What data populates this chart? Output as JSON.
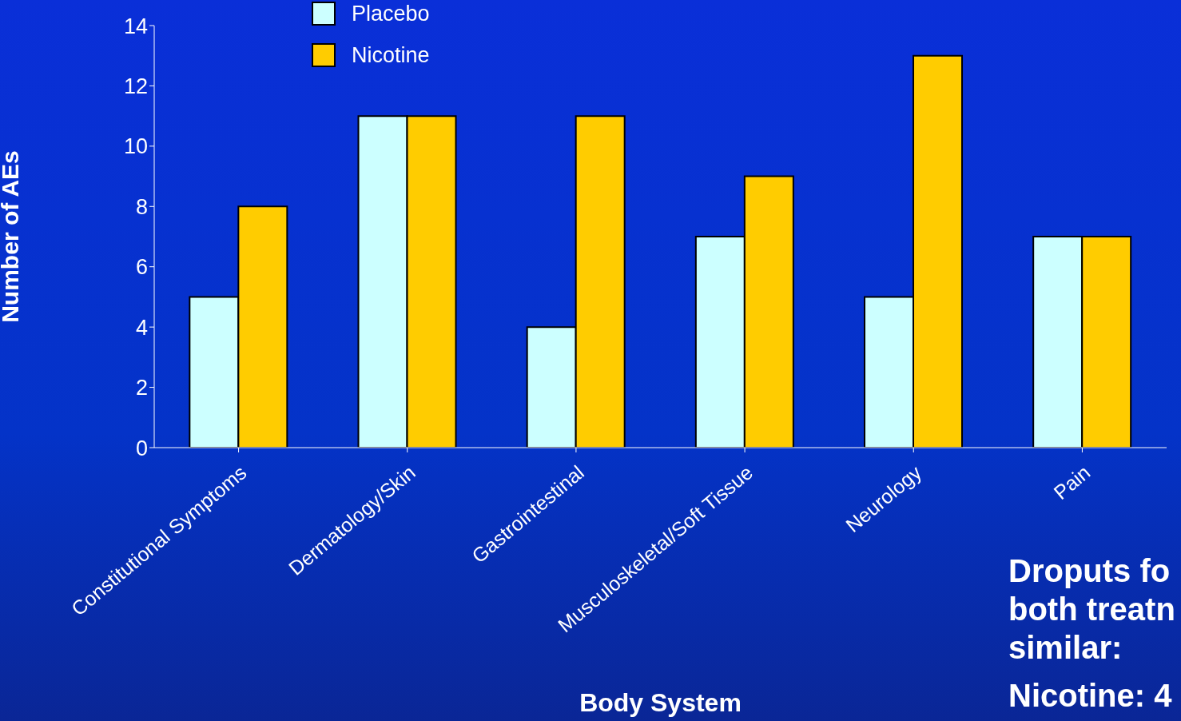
{
  "chart_data": {
    "type": "bar",
    "xlabel": "Body System",
    "ylabel": "Number of AEs",
    "categories": [
      "Constitutional Symptoms",
      "Dermatology/Skin",
      "Gastrointestinal",
      "Musculoskeletal/Soft Tissue",
      "Neurology",
      "Pain"
    ],
    "series": [
      {
        "name": "Placebo",
        "color": "#ccffff",
        "values": [
          5,
          11,
          4,
          7,
          5,
          7
        ]
      },
      {
        "name": "Nicotine",
        "color": "#ffcc00",
        "values": [
          8,
          11,
          11,
          9,
          13,
          7
        ]
      }
    ],
    "ylim": [
      0,
      14
    ],
    "yticks": [
      0,
      2,
      4,
      6,
      8,
      10,
      12,
      14
    ],
    "legend": "top left",
    "annotations": [
      "Droputs fo",
      "both treatn",
      "similar:",
      "Nicotine: 4"
    ]
  }
}
